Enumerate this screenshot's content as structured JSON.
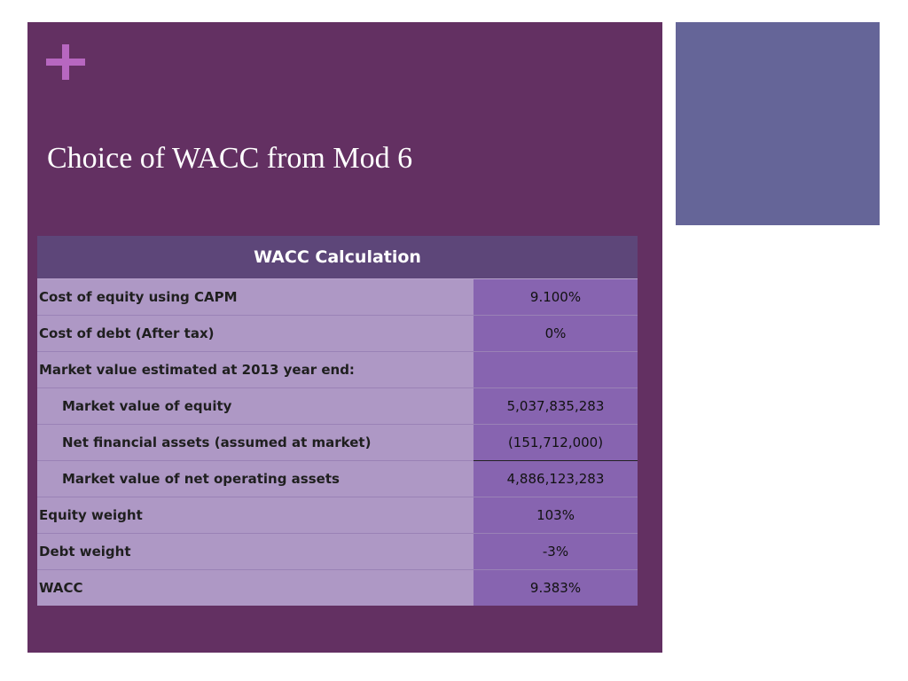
{
  "slide": {
    "title": "Choice of WACC from Mod 6",
    "plus_icon": "plus-icon",
    "colors": {
      "main_panel": "#633062",
      "side_panel": "#656598",
      "accent": "#b767c0",
      "table_header": "#5d4679",
      "label_cells": "#ae98c5",
      "value_cells": "#8764b0"
    }
  },
  "table": {
    "header": "WACC Calculation",
    "rows": [
      {
        "label": "Cost of equity using CAPM",
        "value": "9.100%"
      },
      {
        "label": "Cost of debt (After tax)",
        "value": "0%"
      },
      {
        "label": "Market value estimated at 2013 year end:",
        "value": ""
      },
      {
        "label": "Market value of equity",
        "value": "5,037,835,283"
      },
      {
        "label": "Net financial assets (assumed at market)",
        "value": "(151,712,000)"
      },
      {
        "label": "Market value of net operating assets",
        "value": "4,886,123,283"
      },
      {
        "label": "Equity weight",
        "value": "103%"
      },
      {
        "label": "Debt weight",
        "value": "-3%"
      },
      {
        "label": "WACC",
        "value": "9.383%"
      }
    ]
  }
}
